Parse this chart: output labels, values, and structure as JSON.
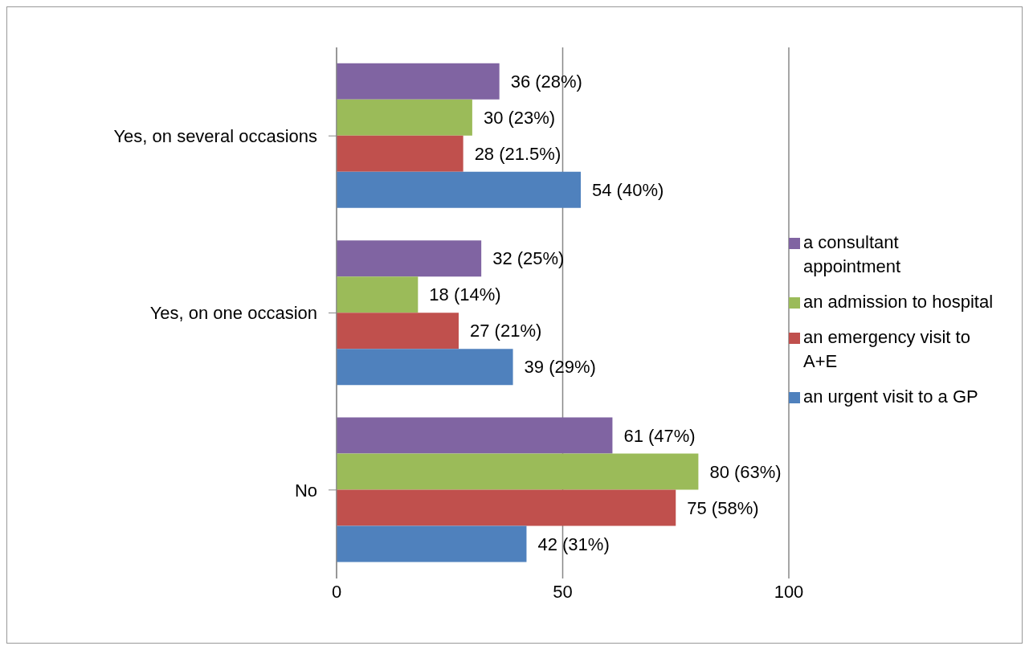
{
  "chart_data": {
    "type": "bar",
    "orientation": "horizontal",
    "categories": [
      "Yes, on several occasions",
      "Yes, on one occasion",
      "No"
    ],
    "series": [
      {
        "name": "a consultant appointment",
        "color": "#8064a2",
        "values": [
          36,
          32,
          61
        ],
        "value_labels": [
          "36 (28%)",
          "32 (25%)",
          "61 (47%)"
        ]
      },
      {
        "name": "an admission to hospital",
        "color": "#9bbb59",
        "values": [
          30,
          18,
          80
        ],
        "value_labels": [
          "30 (23%)",
          "18 (14%)",
          "80 (63%)"
        ]
      },
      {
        "name": "an emergency visit to A+E",
        "color": "#c0504d",
        "values": [
          28,
          27,
          75
        ],
        "value_labels": [
          "28 (21.5%)",
          "27 (21%)",
          "75 (58%)"
        ]
      },
      {
        "name": "an urgent visit to a GP",
        "color": "#4f81bd",
        "values": [
          54,
          39,
          42
        ],
        "value_labels": [
          "54 (40%)",
          "39 (29%)",
          "42 (31%)"
        ]
      }
    ],
    "xlim": [
      0,
      100
    ],
    "xticks": [
      0,
      50,
      100
    ],
    "grid": "x",
    "legend": "right"
  }
}
